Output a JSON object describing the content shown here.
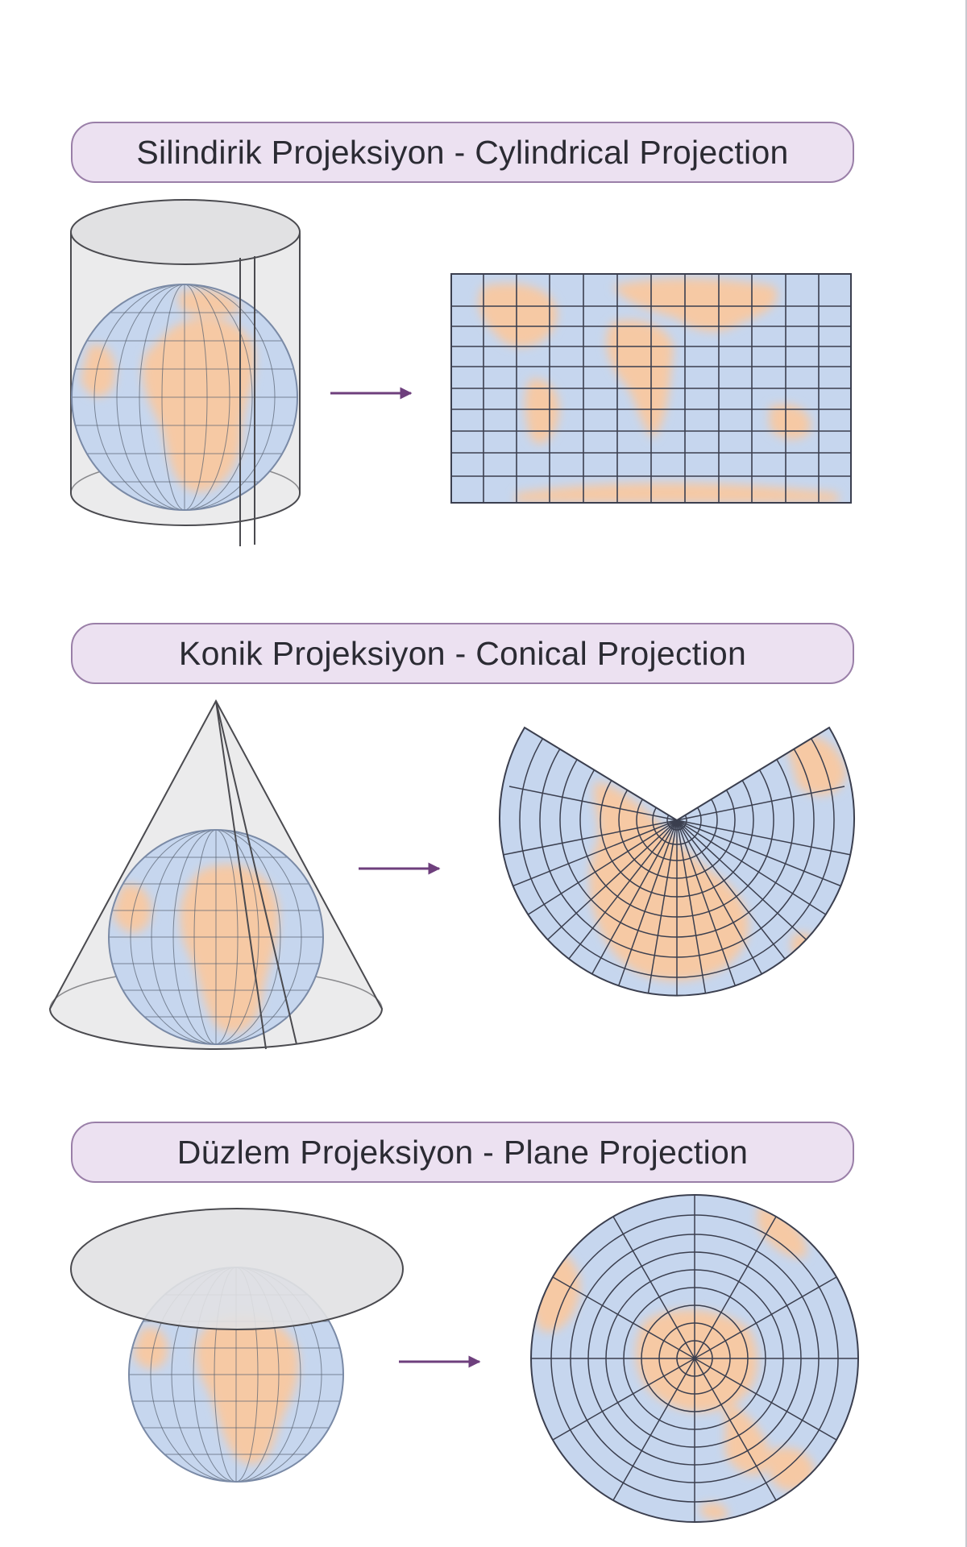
{
  "sections": [
    {
      "title": "Silindirik Projeksiyon - Cylindrical Projection",
      "projection": "cylindrical"
    },
    {
      "title": "Konik Projeksiyon - Conical Projection",
      "projection": "conical"
    },
    {
      "title": "Düzlem Projeksiyon - Plane Projection",
      "projection": "plane"
    }
  ],
  "colors": {
    "ocean": "#c6d6ee",
    "land": "#f6c9a4",
    "grid": "#3b3f4f",
    "surface": "#e6e6e8",
    "arrow": "#6e3f7d",
    "title_fill": "#ece1f1",
    "title_border": "#9a7fa8"
  },
  "icons": [
    "arrow-right-icon",
    "globe-icon",
    "cylinder-icon",
    "cone-icon",
    "plane-disc-icon"
  ]
}
